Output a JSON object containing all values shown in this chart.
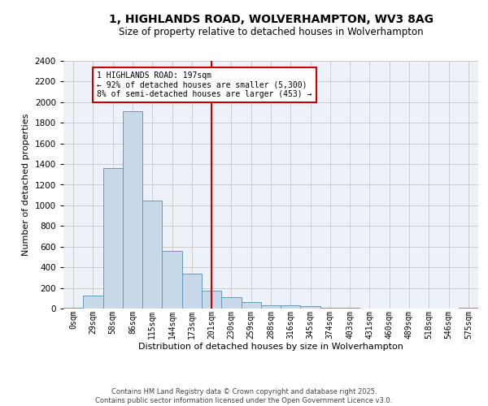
{
  "title": "1, HIGHLANDS ROAD, WOLVERHAMPTON, WV3 8AG",
  "subtitle": "Size of property relative to detached houses in Wolverhampton",
  "xlabel": "Distribution of detached houses by size in Wolverhampton",
  "ylabel": "Number of detached properties",
  "bar_labels": [
    "0sqm",
    "29sqm",
    "58sqm",
    "86sqm",
    "115sqm",
    "144sqm",
    "173sqm",
    "201sqm",
    "230sqm",
    "259sqm",
    "288sqm",
    "316sqm",
    "345sqm",
    "374sqm",
    "403sqm",
    "431sqm",
    "460sqm",
    "489sqm",
    "518sqm",
    "546sqm",
    "575sqm"
  ],
  "bar_values": [
    10,
    125,
    1360,
    1910,
    1050,
    560,
    335,
    170,
    110,
    60,
    35,
    30,
    22,
    8,
    4,
    2,
    1,
    1,
    1,
    1,
    5
  ],
  "bar_color": "#c8daea",
  "bar_edge_color": "#6699bb",
  "vline_x": 7.0,
  "vline_color": "#cc0000",
  "annotation_line1": "1 HIGHLANDS ROAD: 197sqm",
  "annotation_line2": "← 92% of detached houses are smaller (5,300)",
  "annotation_line3": "8% of semi-detached houses are larger (453) →",
  "annotation_box_color": "#cc0000",
  "ylim": [
    0,
    2400
  ],
  "yticks": [
    0,
    200,
    400,
    600,
    800,
    1000,
    1200,
    1400,
    1600,
    1800,
    2000,
    2200,
    2400
  ],
  "grid_color": "#cccccc",
  "background_color": "#edf2f8",
  "footer_line1": "Contains HM Land Registry data © Crown copyright and database right 2025.",
  "footer_line2": "Contains public sector information licensed under the Open Government Licence v3.0."
}
